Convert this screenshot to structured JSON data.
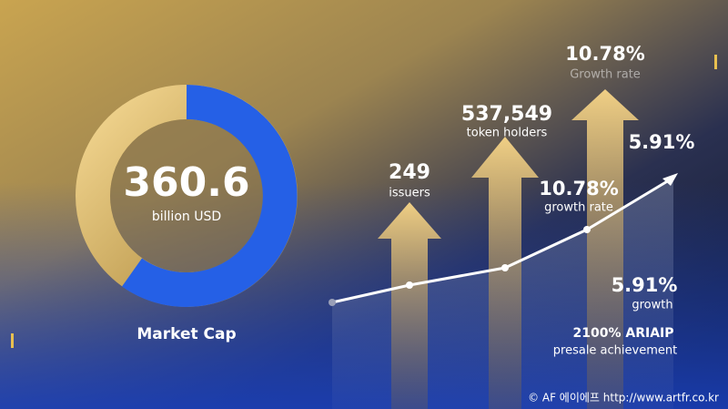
{
  "donut": {
    "value": "360.6",
    "unit": "billion USD",
    "label": "Market Cap"
  },
  "arrows": [
    {
      "value": "249",
      "label": "issuers"
    },
    {
      "value": "537,549",
      "label": "token holders"
    },
    {
      "value": "10.78%",
      "label": "Growth rate"
    }
  ],
  "line_labels": [
    {
      "value": "5.91%"
    },
    {
      "value": "10.78%",
      "label": "growth rate"
    },
    {
      "value": "5.91%",
      "label": "growth"
    }
  ],
  "presale": {
    "value": "2100% ARIAIP",
    "label": "presale achievement"
  },
  "footer": "© AF 에이에프  http://www.artfr.co.kr"
}
